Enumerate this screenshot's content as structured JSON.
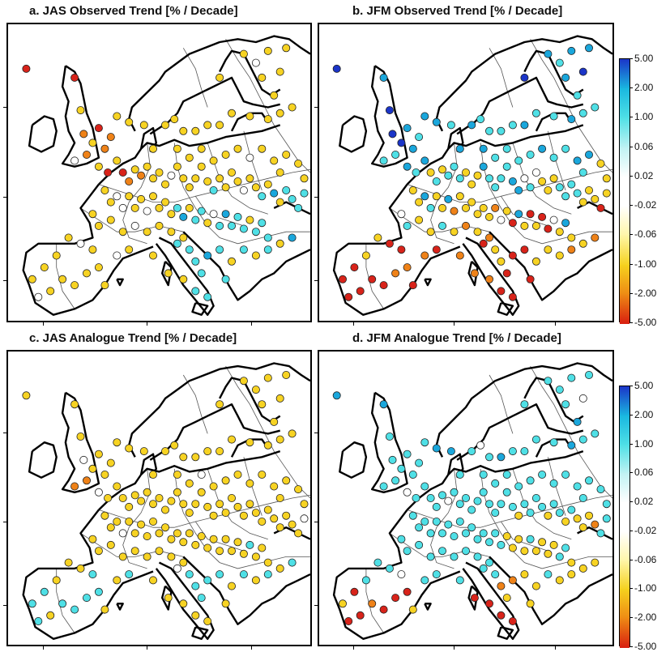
{
  "panels": [
    {
      "title": "a. JAS Observed Trend [% / Decade]"
    },
    {
      "title": "b. JFM Observed Trend [% / Decade]"
    },
    {
      "title": "c. JAS Analogue Trend [% / Decade]"
    },
    {
      "title": "d. JFM Analogue Trend [% / Decade]"
    }
  ],
  "legend": {
    "labels": [
      "5.00",
      "2.00",
      "1.00",
      "0.06",
      "0.02",
      "-0.02",
      "-0.06",
      "-1.00",
      "-2.00",
      "-5.00"
    ],
    "colors": [
      "#1b35c8",
      "#19b8e0",
      "#4fe0e6",
      "#bff2f3",
      "#ffffff",
      "#ffffff",
      "#fff6a8",
      "#f5d21e",
      "#ee8a14",
      "#d81e10"
    ]
  },
  "colors": {
    "dark_blue": "#1b35c8",
    "mid_blue": "#1aa7dc",
    "cyan": "#4fe0e6",
    "white": "#ffffff",
    "yellow": "#f7d323",
    "orange": "#ef8218",
    "red": "#d8231a"
  }
}
